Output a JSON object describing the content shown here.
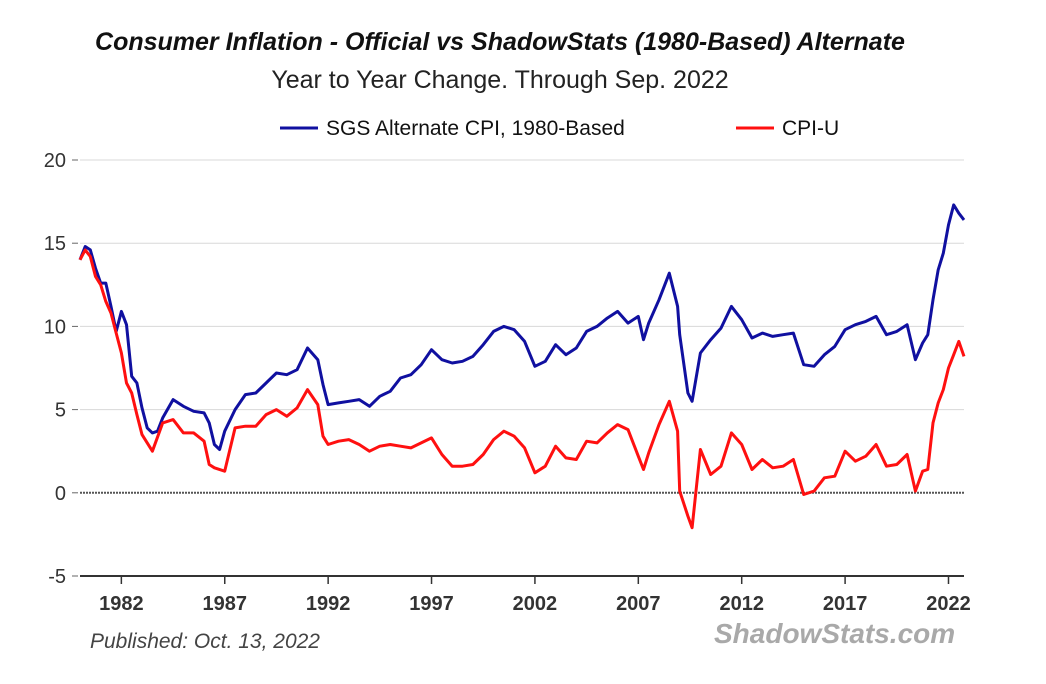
{
  "chart_data": {
    "type": "line",
    "title": "Consumer Inflation - Official vs ShadowStats (1980-Based) Alternate",
    "subtitle": "Year to Year Change. Through Sep. 2022",
    "ylim": [
      -5,
      20
    ],
    "yticks": [
      20,
      15,
      10,
      5,
      0,
      -5
    ],
    "xlim": [
      1980,
      2022.75
    ],
    "xticks": [
      1982,
      1987,
      1992,
      1997,
      2002,
      2007,
      2012,
      2017,
      2022
    ],
    "grid": true,
    "legend_position": "top",
    "series": [
      {
        "name": "SGS Alternate CPI, 1980-Based",
        "color": "#1010a0",
        "points": [
          [
            1980,
            14.0
          ],
          [
            1980.25,
            14.8
          ],
          [
            1980.5,
            14.6
          ],
          [
            1980.75,
            13.5
          ],
          [
            1981,
            12.6
          ],
          [
            1981.25,
            12.6
          ],
          [
            1981.5,
            11.2
          ],
          [
            1981.75,
            9.7
          ],
          [
            1982,
            10.9
          ],
          [
            1982.25,
            10.1
          ],
          [
            1982.5,
            7.0
          ],
          [
            1982.75,
            6.6
          ],
          [
            1983,
            5.1
          ],
          [
            1983.25,
            3.9
          ],
          [
            1983.5,
            3.6
          ],
          [
            1983.75,
            3.7
          ],
          [
            1984,
            4.5
          ],
          [
            1984.5,
            5.6
          ],
          [
            1985,
            5.2
          ],
          [
            1985.5,
            4.9
          ],
          [
            1986,
            4.8
          ],
          [
            1986.25,
            4.2
          ],
          [
            1986.5,
            2.9
          ],
          [
            1986.75,
            2.6
          ],
          [
            1987,
            3.7
          ],
          [
            1987.5,
            5.0
          ],
          [
            1988,
            5.9
          ],
          [
            1988.5,
            6.0
          ],
          [
            1989,
            6.6
          ],
          [
            1989.5,
            7.2
          ],
          [
            1990,
            7.1
          ],
          [
            1990.5,
            7.4
          ],
          [
            1991,
            8.7
          ],
          [
            1991.5,
            8.0
          ],
          [
            1991.75,
            6.5
          ],
          [
            1992,
            5.3
          ],
          [
            1992.5,
            5.4
          ],
          [
            1993,
            5.5
          ],
          [
            1993.5,
            5.6
          ],
          [
            1994,
            5.2
          ],
          [
            1994.5,
            5.8
          ],
          [
            1995,
            6.1
          ],
          [
            1995.5,
            6.9
          ],
          [
            1996,
            7.1
          ],
          [
            1996.5,
            7.7
          ],
          [
            1997,
            8.6
          ],
          [
            1997.5,
            8.0
          ],
          [
            1998,
            7.8
          ],
          [
            1998.5,
            7.9
          ],
          [
            1999,
            8.2
          ],
          [
            1999.5,
            8.9
          ],
          [
            2000,
            9.7
          ],
          [
            2000.5,
            10.0
          ],
          [
            2001,
            9.8
          ],
          [
            2001.5,
            9.1
          ],
          [
            2002,
            7.6
          ],
          [
            2002.5,
            7.9
          ],
          [
            2003,
            8.9
          ],
          [
            2003.5,
            8.3
          ],
          [
            2004,
            8.7
          ],
          [
            2004.5,
            9.7
          ],
          [
            2005,
            10.0
          ],
          [
            2005.5,
            10.5
          ],
          [
            2006,
            10.9
          ],
          [
            2006.5,
            10.2
          ],
          [
            2007,
            10.6
          ],
          [
            2007.25,
            9.2
          ],
          [
            2007.5,
            10.2
          ],
          [
            2008,
            11.6
          ],
          [
            2008.5,
            13.2
          ],
          [
            2008.9,
            11.2
          ],
          [
            2009,
            9.5
          ],
          [
            2009.4,
            6.0
          ],
          [
            2009.6,
            5.5
          ],
          [
            2010,
            8.4
          ],
          [
            2010.5,
            9.2
          ],
          [
            2011,
            9.9
          ],
          [
            2011.5,
            11.2
          ],
          [
            2012,
            10.4
          ],
          [
            2012.5,
            9.3
          ],
          [
            2013,
            9.6
          ],
          [
            2013.5,
            9.4
          ],
          [
            2014,
            9.5
          ],
          [
            2014.5,
            9.6
          ],
          [
            2015,
            7.7
          ],
          [
            2015.5,
            7.6
          ],
          [
            2016,
            8.3
          ],
          [
            2016.5,
            8.8
          ],
          [
            2017,
            9.8
          ],
          [
            2017.5,
            10.1
          ],
          [
            2018,
            10.3
          ],
          [
            2018.5,
            10.6
          ],
          [
            2019,
            9.5
          ],
          [
            2019.5,
            9.7
          ],
          [
            2020,
            10.1
          ],
          [
            2020.4,
            8.0
          ],
          [
            2020.75,
            9.0
          ],
          [
            2021,
            9.5
          ],
          [
            2021.25,
            11.6
          ],
          [
            2021.5,
            13.4
          ],
          [
            2021.75,
            14.4
          ],
          [
            2022,
            16.1
          ],
          [
            2022.25,
            17.3
          ],
          [
            2022.5,
            16.8
          ],
          [
            2022.75,
            16.4
          ]
        ]
      },
      {
        "name": "CPI-U",
        "color": "#ff1010",
        "points": [
          [
            1980,
            14.0
          ],
          [
            1980.25,
            14.6
          ],
          [
            1980.5,
            14.2
          ],
          [
            1980.75,
            13.0
          ],
          [
            1981,
            12.5
          ],
          [
            1981.25,
            11.5
          ],
          [
            1981.5,
            10.8
          ],
          [
            1981.75,
            9.6
          ],
          [
            1982,
            8.4
          ],
          [
            1982.25,
            6.6
          ],
          [
            1982.5,
            6.0
          ],
          [
            1982.75,
            4.7
          ],
          [
            1983,
            3.5
          ],
          [
            1983.5,
            2.5
          ],
          [
            1984,
            4.2
          ],
          [
            1984.5,
            4.4
          ],
          [
            1985,
            3.6
          ],
          [
            1985.5,
            3.6
          ],
          [
            1986,
            3.1
          ],
          [
            1986.25,
            1.7
          ],
          [
            1986.5,
            1.5
          ],
          [
            1987,
            1.3
          ],
          [
            1987.5,
            3.9
          ],
          [
            1988,
            4.0
          ],
          [
            1988.5,
            4.0
          ],
          [
            1989,
            4.7
          ],
          [
            1989.5,
            5.0
          ],
          [
            1990,
            4.6
          ],
          [
            1990.5,
            5.1
          ],
          [
            1991,
            6.2
          ],
          [
            1991.5,
            5.3
          ],
          [
            1991.75,
            3.4
          ],
          [
            1992,
            2.9
          ],
          [
            1992.5,
            3.1
          ],
          [
            1993,
            3.2
          ],
          [
            1993.5,
            2.9
          ],
          [
            1994,
            2.5
          ],
          [
            1994.5,
            2.8
          ],
          [
            1995,
            2.9
          ],
          [
            1995.5,
            2.8
          ],
          [
            1996,
            2.7
          ],
          [
            1996.5,
            3.0
          ],
          [
            1997,
            3.3
          ],
          [
            1997.5,
            2.3
          ],
          [
            1998,
            1.6
          ],
          [
            1998.5,
            1.6
          ],
          [
            1999,
            1.7
          ],
          [
            1999.5,
            2.3
          ],
          [
            2000,
            3.2
          ],
          [
            2000.5,
            3.7
          ],
          [
            2001,
            3.4
          ],
          [
            2001.5,
            2.7
          ],
          [
            2002,
            1.2
          ],
          [
            2002.5,
            1.6
          ],
          [
            2003,
            2.8
          ],
          [
            2003.5,
            2.1
          ],
          [
            2004,
            2.0
          ],
          [
            2004.5,
            3.1
          ],
          [
            2005,
            3.0
          ],
          [
            2005.5,
            3.6
          ],
          [
            2006,
            4.1
          ],
          [
            2006.5,
            3.8
          ],
          [
            2007,
            2.2
          ],
          [
            2007.25,
            1.4
          ],
          [
            2007.5,
            2.4
          ],
          [
            2008,
            4.1
          ],
          [
            2008.5,
            5.5
          ],
          [
            2008.9,
            3.7
          ],
          [
            2009,
            0.1
          ],
          [
            2009.4,
            -1.4
          ],
          [
            2009.6,
            -2.1
          ],
          [
            2010,
            2.6
          ],
          [
            2010.5,
            1.1
          ],
          [
            2011,
            1.6
          ],
          [
            2011.5,
            3.6
          ],
          [
            2012,
            2.9
          ],
          [
            2012.5,
            1.4
          ],
          [
            2013,
            2.0
          ],
          [
            2013.5,
            1.5
          ],
          [
            2014,
            1.6
          ],
          [
            2014.5,
            2.0
          ],
          [
            2015,
            -0.1
          ],
          [
            2015.5,
            0.1
          ],
          [
            2016,
            0.9
          ],
          [
            2016.5,
            1.0
          ],
          [
            2017,
            2.5
          ],
          [
            2017.5,
            1.9
          ],
          [
            2018,
            2.2
          ],
          [
            2018.5,
            2.9
          ],
          [
            2019,
            1.6
          ],
          [
            2019.5,
            1.7
          ],
          [
            2020,
            2.3
          ],
          [
            2020.4,
            0.1
          ],
          [
            2020.75,
            1.3
          ],
          [
            2021,
            1.4
          ],
          [
            2021.25,
            4.2
          ],
          [
            2021.5,
            5.4
          ],
          [
            2021.75,
            6.2
          ],
          [
            2022,
            7.5
          ],
          [
            2022.25,
            8.3
          ],
          [
            2022.5,
            9.1
          ],
          [
            2022.75,
            8.2
          ]
        ]
      }
    ]
  },
  "footer": {
    "published": "Published: Oct. 13, 2022",
    "brand": "ShadowStats.com"
  }
}
